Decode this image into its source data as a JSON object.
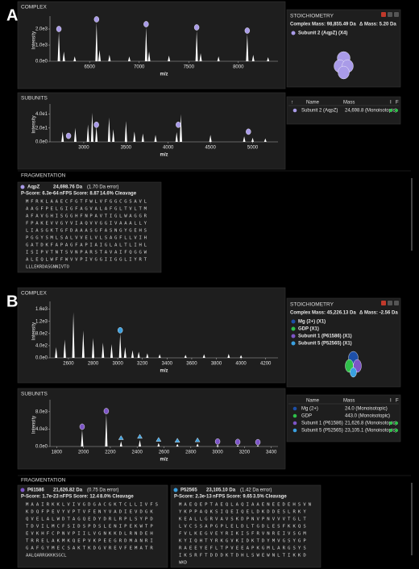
{
  "panels": [
    {
      "label": "A",
      "complex": {
        "title": "COMPLEX",
        "type": "spectrum",
        "x_label": "m/z",
        "y_label": "Intensity",
        "xlim": [
          6100,
          8400
        ],
        "ylim": [
          0,
          2600
        ],
        "xticks": [
          6500,
          7000,
          7500,
          8000
        ],
        "yticks": [
          {
            "value": 0,
            "label": "0.0e0"
          },
          {
            "value": 1000,
            "label": "1.0e3"
          },
          {
            "value": 2000,
            "label": "2.0e3"
          }
        ],
        "peaks": {
          "color": "#ffffff",
          "x": [
            6190,
            6240,
            6350,
            6570,
            6600,
            6700,
            6900,
            7070,
            7100,
            7300,
            7580,
            7620,
            7800,
            8090,
            8150,
            8300
          ],
          "values": [
            1800,
            600,
            300,
            2400,
            700,
            400,
            300,
            2100,
            600,
            350,
            1900,
            500,
            300,
            1700,
            400,
            250
          ]
        },
        "markers": [
          {
            "color": "#a99be8",
            "shape": "circle",
            "x": [
              6190,
              6570,
              7070,
              7580,
              8090
            ],
            "values": [
              1800,
              2400,
              2100,
              1900,
              1700
            ]
          }
        ]
      },
      "stoichiometry": {
        "title": "STOICHIOMETRY",
        "complex_mass": "Complex Mass: 98,855.49 Da",
        "delta_mass": "Δ Mass: 5.20 Da",
        "components": [
          {
            "name": "Subunit 2 (AqpZ) (X4)",
            "color": "#a99be8"
          }
        ]
      },
      "subunits": {
        "title": "SUBUNITS",
        "type": "spectrum",
        "x_label": "m/z",
        "y_label": "Intensity",
        "xlim": [
          2600,
          5300
        ],
        "ylim": [
          0,
          50
        ],
        "xticks": [
          3000,
          3500,
          4000,
          4500,
          5000
        ],
        "yticks": [
          {
            "value": 0,
            "label": "0.0e0"
          },
          {
            "value": 20,
            "label": "2.0e1"
          },
          {
            "value": 40,
            "label": "4.0e1"
          }
        ],
        "peaks": {
          "color": "#ffffff",
          "x": [
            2750,
            2900,
            3050,
            3100,
            3150,
            3300,
            3350,
            3500,
            3600,
            3700,
            3850,
            4100,
            4150,
            4500,
            4900,
            5000,
            5150
          ],
          "values": [
            15,
            20,
            25,
            42,
            22,
            35,
            18,
            30,
            15,
            12,
            10,
            14,
            40,
            10,
            8,
            6,
            5
          ]
        },
        "markers": [
          {
            "color": "#a99be8",
            "shape": "circle",
            "x": [
              2820,
              3150,
              4120,
              4950
            ],
            "values": [
              4,
              20,
              20,
              10
            ]
          }
        ]
      },
      "subunit_table": {
        "headers": [
          "↑",
          "Name",
          "Mass",
          "I",
          "F"
        ],
        "rows": [
          {
            "color": "#a99be8",
            "name": "Subunit 2 (AqpZ)",
            "mass": "24,698.8 (Monoisotopic)"
          }
        ]
      },
      "fragmentation": {
        "title": "FRAGMENTATION",
        "cards": [
          {
            "color": "#a99be8",
            "name": "AqpZ",
            "mass": "24,698.76 Da",
            "error": "(1.70 Da error)",
            "p_score": "P-Score: 6.3e-64",
            "nfps": "nFPS Score: 8.87",
            "cleavage": "14.6% Cleavage",
            "sequence": [
              "MFRKLAAECFGTFWLVFGGCGSAVL",
              "AAGFPELGIGFAGVALAFGLTVLTM",
              "AFAVGHISGGHFNPAVTIGLWAGGR",
              "FPAKEVVGYVIAQVVGGIVAAALLY",
              "LIASGKTGFDAAASGFASNGYGEHS",
              "PGGYSMLSALVVELVLSAGFLLVIH",
              "GATDKFAPAGFAPIAIGLALTLIHL",
              "ISIPVTNTSVNPARSTAVAIFQGGW",
              "ALEQLWFFWVVPIVGGIIGGLIYRT",
              "LLLEKRDASGNNIVTO"
            ]
          }
        ]
      }
    },
    {
      "label": "B",
      "complex": {
        "title": "COMPLEX",
        "type": "spectrum",
        "x_label": "m/z",
        "y_label": "Intensity",
        "xlim": [
          2450,
          4300
        ],
        "ylim": [
          0,
          1750
        ],
        "xticks": [
          2600,
          2800,
          3000,
          3200,
          3400,
          3600,
          3800,
          4000,
          4200
        ],
        "yticks": [
          {
            "value": 0,
            "label": "0.0e0"
          },
          {
            "value": 400,
            "label": "4.0e2"
          },
          {
            "value": 800,
            "label": "8.0e2"
          },
          {
            "value": 1200,
            "label": "1.2e3"
          },
          {
            "value": 1600,
            "label": "1.6e3"
          }
        ],
        "peaks": {
          "color": "#ffffff",
          "x": [
            2500,
            2570,
            2640,
            2720,
            2800,
            2880,
            2950,
            3020,
            3060,
            3120,
            3170,
            3240,
            3340,
            3550,
            3700,
            3900,
            4000
          ],
          "values": [
            350,
            600,
            1500,
            900,
            650,
            500,
            450,
            800,
            350,
            250,
            200,
            150,
            120,
            100,
            120,
            130,
            90
          ]
        },
        "markers": [
          {
            "color": "#3aa0e0",
            "shape": "circle",
            "x": [
              3020
            ],
            "values": [
              800
            ]
          }
        ]
      },
      "stoichiometry": {
        "title": "STOICHIOMETRY",
        "complex_mass": "Complex Mass: 45,226.13 Da",
        "delta_mass": "Δ Mass: -2.56 Da",
        "components": [
          {
            "name": "Mg (2+) (X1)",
            "color": "#1d4fa8"
          },
          {
            "name": "GDP (X1)",
            "color": "#2fbf4a"
          },
          {
            "name": "Subunit 1 (P61586) (X1)",
            "color": "#7d55c7"
          },
          {
            "name": "Subunit 5 (P52565) (X1)",
            "color": "#3aa0e0"
          }
        ]
      },
      "subunits": {
        "title": "SUBUNITS",
        "type": "spectrum",
        "x_label": "m/z",
        "y_label": "Intensity",
        "xlim": [
          1750,
          3450
        ],
        "ylim": [
          0,
          10000
        ],
        "xticks": [
          1800,
          2000,
          2200,
          2400,
          2600,
          2800,
          3000,
          3200,
          3400
        ],
        "yticks": [
          {
            "value": 0,
            "label": "0.0e0"
          },
          {
            "value": 4000,
            "label": "4.0e3"
          },
          {
            "value": 8000,
            "label": "8.0e3"
          }
        ],
        "peaks": {
          "color": "#ffffff",
          "x": [
            1990,
            2170,
            2280,
            2420,
            2560,
            2700,
            2850,
            3000,
            3150,
            3300
          ],
          "values": [
            3800,
            7400,
            1200,
            1500,
            800,
            600,
            700,
            400,
            300,
            250
          ]
        },
        "markers": [
          {
            "color": "#7d55c7",
            "shape": "circle",
            "x": [
              1990,
              2170,
              3000,
              3150,
              3300
            ],
            "values": [
              3800,
              7400,
              400,
              300,
              250
            ]
          },
          {
            "color": "#3aa0e0",
            "shape": "triangle",
            "x": [
              2280,
              2420,
              2560,
              2700,
              2850
            ],
            "values": [
              1200,
              1500,
              800,
              600,
              700
            ]
          }
        ]
      },
      "subunit_table": {
        "headers": [
          "Name",
          "Mass",
          "I",
          "F"
        ],
        "rows": [
          {
            "color": "#1d4fa8",
            "name": "Mg (2+)",
            "mass": "24.0 (Monoisotopic)"
          },
          {
            "color": "#2fbf4a",
            "name": "GDP",
            "mass": "443.0 (Monoisotopic)"
          },
          {
            "color": "#7d55c7",
            "name": "Subunit 1 (P61586)",
            "mass": "21,626.8 (Monoisotopic)"
          },
          {
            "color": "#3aa0e0",
            "name": "Subunit 5 (P52565)",
            "mass": "23,105.1 (Monoisotopic)"
          }
        ]
      },
      "fragmentation": {
        "title": "FRAGMENTATION",
        "cards": [
          {
            "color": "#7d55c7",
            "name": "P61586",
            "mass": "21,626.82 Da",
            "error": "(0.75 Da error)",
            "p_score": "P-Score: 1.7e-23",
            "nfps": "nFPS Score: 12.4",
            "cleavage": "8.0% Cleavage",
            "sequence": [
              "MAAIRKKLVIVGDGACGKTCLLIVFS",
              "KDQFPEVYVPTVFENYVADIEVDGK",
              "QVELALWDTAGQEDYDRLRPLSYPD",
              "TDVILMCFSIDSPDSLENIPEKWTP",
              "EVKHFCPNVPIILVGNKKDLRNDEH",
              "TRRELAKMKQEPVKPEEGRDMANRI",
              "GAFGYMECSAKTKDGVREVFEMATR",
              "AALQARRGKKKSGCL"
            ]
          },
          {
            "color": "#3aa0e0",
            "name": "P52565",
            "mass": "23,105.10 Da",
            "error": "(1.42 Da error)",
            "p_score": "P-Score: 2.3e-13",
            "nfps": "nFPS Score: 9.65",
            "cleavage": "3.5% Cleavage",
            "sequence": [
              "MAEQEPTAEQLAQIAAENEEDEHSVN",
              "YKPPAQKSIQEIQELDKDDESLRKY",
              "KEALLGRVAVSKDPNVPNVVVTGLT",
              "LVCSSAPGPLELDLTGDLESFKKQS",
              "FVLKEGVEYRIKISFRVNREIVSGM",
              "KYIQHTYRKGVKIDKTDYMVGSYGP",
              "RAEEYEFLTPVEEAPKGMLARGSYS",
              "IKSRFTDDDKTDHLSWEWNLTIKKD",
              "WKD"
            ]
          }
        ]
      }
    }
  ]
}
